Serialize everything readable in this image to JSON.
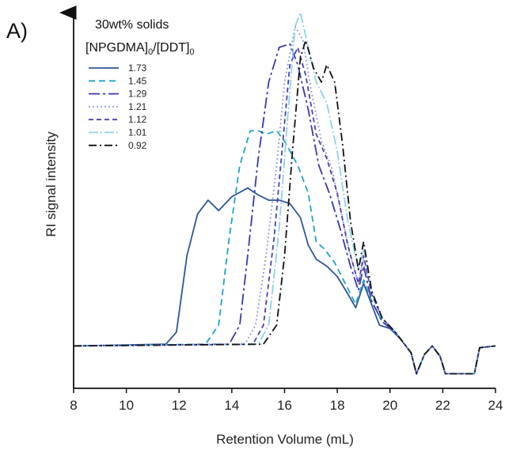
{
  "panel_label": "A)",
  "legend_title": {
    "line1": "30wt% solids",
    "main1": "[NPGDMA]",
    "sub1": "0",
    "main2": "/[DDT]",
    "sub2": "0"
  },
  "chart_data": {
    "type": "line",
    "xlabel": "Retention Volume (mL)",
    "ylabel": "RI signal intensity",
    "xlim": [
      8,
      24
    ],
    "ylim": [
      0,
      1.0
    ],
    "xticks": [
      8,
      10,
      12,
      14,
      16,
      18,
      20,
      22,
      24
    ],
    "y_tick_labels_shown": false,
    "grid": false,
    "legend_position": "top-left",
    "series": [
      {
        "name": "1.73",
        "color": "#2f5597",
        "dash": "",
        "points": [
          [
            8,
            0.04
          ],
          [
            11.5,
            0.045
          ],
          [
            11.9,
            0.08
          ],
          [
            12.3,
            0.3
          ],
          [
            12.7,
            0.42
          ],
          [
            13.1,
            0.46
          ],
          [
            13.5,
            0.43
          ],
          [
            14.0,
            0.47
          ],
          [
            14.6,
            0.495
          ],
          [
            15.0,
            0.475
          ],
          [
            15.4,
            0.46
          ],
          [
            15.8,
            0.46
          ],
          [
            16.2,
            0.45
          ],
          [
            16.6,
            0.41
          ],
          [
            16.9,
            0.33
          ],
          [
            17.2,
            0.29
          ],
          [
            17.6,
            0.27
          ],
          [
            18.0,
            0.24
          ],
          [
            18.4,
            0.19
          ],
          [
            18.7,
            0.15
          ],
          [
            19.0,
            0.22
          ],
          [
            19.3,
            0.16
          ],
          [
            19.6,
            0.1
          ],
          [
            20.0,
            0.09
          ],
          [
            20.4,
            0.06
          ],
          [
            20.8,
            0.02
          ],
          [
            21.0,
            -0.04
          ],
          [
            21.3,
            0.015
          ],
          [
            21.6,
            0.04
          ],
          [
            21.9,
            0.01
          ],
          [
            22.1,
            -0.04
          ],
          [
            23.2,
            -0.04
          ],
          [
            23.4,
            0.035
          ],
          [
            24,
            0.04
          ]
        ]
      },
      {
        "name": "1.45",
        "color": "#21a3c9",
        "dash": "8,5",
        "points": [
          [
            8,
            0.04
          ],
          [
            13.0,
            0.045
          ],
          [
            13.5,
            0.1
          ],
          [
            13.9,
            0.35
          ],
          [
            14.3,
            0.56
          ],
          [
            14.7,
            0.66
          ],
          [
            15.0,
            0.66
          ],
          [
            15.3,
            0.65
          ],
          [
            15.7,
            0.66
          ],
          [
            16.0,
            0.63
          ],
          [
            16.5,
            0.56
          ],
          [
            16.9,
            0.48
          ],
          [
            17.2,
            0.34
          ],
          [
            17.5,
            0.32
          ],
          [
            17.9,
            0.28
          ],
          [
            18.3,
            0.22
          ],
          [
            18.7,
            0.16
          ],
          [
            19.0,
            0.23
          ],
          [
            19.3,
            0.17
          ],
          [
            19.7,
            0.11
          ],
          [
            20.2,
            0.08
          ],
          [
            20.8,
            0.02
          ],
          [
            21.0,
            -0.04
          ],
          [
            21.3,
            0.015
          ],
          [
            21.6,
            0.04
          ],
          [
            21.9,
            0.01
          ],
          [
            22.1,
            -0.04
          ],
          [
            23.2,
            -0.04
          ],
          [
            23.4,
            0.035
          ],
          [
            24,
            0.04
          ]
        ]
      },
      {
        "name": "1.29",
        "color": "#3b39a8",
        "dash": "14,4,3,4",
        "points": [
          [
            8,
            0.04
          ],
          [
            13.9,
            0.045
          ],
          [
            14.3,
            0.1
          ],
          [
            14.6,
            0.3
          ],
          [
            15.0,
            0.58
          ],
          [
            15.4,
            0.8
          ],
          [
            15.8,
            0.9
          ],
          [
            16.2,
            0.91
          ],
          [
            16.5,
            0.85
          ],
          [
            16.9,
            0.72
          ],
          [
            17.3,
            0.56
          ],
          [
            17.7,
            0.48
          ],
          [
            18.1,
            0.38
          ],
          [
            18.5,
            0.27
          ],
          [
            18.8,
            0.2
          ],
          [
            19.0,
            0.27
          ],
          [
            19.3,
            0.17
          ],
          [
            19.7,
            0.11
          ],
          [
            20.2,
            0.08
          ],
          [
            20.8,
            0.02
          ],
          [
            21.0,
            -0.04
          ],
          [
            21.3,
            0.015
          ],
          [
            21.6,
            0.04
          ],
          [
            21.9,
            0.01
          ],
          [
            22.1,
            -0.04
          ],
          [
            23.2,
            -0.04
          ],
          [
            23.4,
            0.035
          ],
          [
            24,
            0.04
          ]
        ]
      },
      {
        "name": "1.21",
        "color": "#8c9ed8",
        "dash": "2,3",
        "points": [
          [
            8,
            0.04
          ],
          [
            14.5,
            0.045
          ],
          [
            14.9,
            0.1
          ],
          [
            15.3,
            0.3
          ],
          [
            15.7,
            0.56
          ],
          [
            16.0,
            0.8
          ],
          [
            16.4,
            0.96
          ],
          [
            16.7,
            0.92
          ],
          [
            17.0,
            0.78
          ],
          [
            17.4,
            0.63
          ],
          [
            17.8,
            0.55
          ],
          [
            18.1,
            0.44
          ],
          [
            18.5,
            0.3
          ],
          [
            18.8,
            0.22
          ],
          [
            19.0,
            0.29
          ],
          [
            19.3,
            0.19
          ],
          [
            19.7,
            0.12
          ],
          [
            20.2,
            0.08
          ],
          [
            20.8,
            0.02
          ],
          [
            21.0,
            -0.04
          ],
          [
            21.3,
            0.015
          ],
          [
            21.6,
            0.04
          ],
          [
            21.9,
            0.01
          ],
          [
            22.1,
            -0.04
          ],
          [
            23.2,
            -0.04
          ],
          [
            23.4,
            0.035
          ],
          [
            24,
            0.04
          ]
        ]
      },
      {
        "name": "1.12",
        "color": "#4d3fb0",
        "dash": "6,4",
        "points": [
          [
            8,
            0.04
          ],
          [
            14.8,
            0.045
          ],
          [
            15.2,
            0.1
          ],
          [
            15.6,
            0.35
          ],
          [
            15.9,
            0.6
          ],
          [
            16.2,
            0.85
          ],
          [
            16.5,
            0.9
          ],
          [
            16.8,
            0.82
          ],
          [
            17.2,
            0.65
          ],
          [
            17.6,
            0.58
          ],
          [
            18.0,
            0.48
          ],
          [
            18.4,
            0.33
          ],
          [
            18.8,
            0.22
          ],
          [
            19.0,
            0.3
          ],
          [
            19.3,
            0.19
          ],
          [
            19.7,
            0.12
          ],
          [
            20.2,
            0.08
          ],
          [
            20.8,
            0.02
          ],
          [
            21.0,
            -0.04
          ],
          [
            21.3,
            0.015
          ],
          [
            21.6,
            0.04
          ],
          [
            21.9,
            0.01
          ],
          [
            22.1,
            -0.04
          ],
          [
            23.2,
            -0.04
          ],
          [
            23.4,
            0.035
          ],
          [
            24,
            0.04
          ]
        ]
      },
      {
        "name": "1.01",
        "color": "#8ed3ea",
        "dash": "12,3,2,3",
        "points": [
          [
            8,
            0.04
          ],
          [
            15.0,
            0.045
          ],
          [
            15.4,
            0.1
          ],
          [
            15.8,
            0.38
          ],
          [
            16.1,
            0.68
          ],
          [
            16.4,
            0.96
          ],
          [
            16.6,
            1.0
          ],
          [
            16.9,
            0.9
          ],
          [
            17.2,
            0.8
          ],
          [
            17.6,
            0.74
          ],
          [
            18.0,
            0.6
          ],
          [
            18.4,
            0.4
          ],
          [
            18.8,
            0.26
          ],
          [
            19.0,
            0.32
          ],
          [
            19.3,
            0.2
          ],
          [
            19.7,
            0.12
          ],
          [
            20.2,
            0.08
          ],
          [
            20.8,
            0.02
          ],
          [
            21.0,
            -0.04
          ],
          [
            21.3,
            0.015
          ],
          [
            21.6,
            0.04
          ],
          [
            21.9,
            0.01
          ],
          [
            22.1,
            -0.04
          ],
          [
            23.2,
            -0.04
          ],
          [
            23.4,
            0.035
          ],
          [
            24,
            0.04
          ]
        ]
      },
      {
        "name": "0.92",
        "color": "#111111",
        "dash": "10,4,2,4",
        "points": [
          [
            8,
            0.04
          ],
          [
            15.2,
            0.045
          ],
          [
            15.7,
            0.1
          ],
          [
            16.0,
            0.3
          ],
          [
            16.3,
            0.6
          ],
          [
            16.6,
            0.87
          ],
          [
            16.8,
            0.92
          ],
          [
            17.1,
            0.84
          ],
          [
            17.4,
            0.8
          ],
          [
            17.6,
            0.85
          ],
          [
            17.9,
            0.8
          ],
          [
            18.2,
            0.62
          ],
          [
            18.5,
            0.4
          ],
          [
            18.8,
            0.26
          ],
          [
            19.0,
            0.34
          ],
          [
            19.3,
            0.2
          ],
          [
            19.7,
            0.12
          ],
          [
            20.2,
            0.08
          ],
          [
            20.8,
            0.02
          ],
          [
            21.0,
            -0.04
          ],
          [
            21.3,
            0.015
          ],
          [
            21.6,
            0.04
          ],
          [
            21.9,
            0.01
          ],
          [
            22.1,
            -0.04
          ],
          [
            23.2,
            -0.04
          ],
          [
            23.4,
            0.035
          ],
          [
            24,
            0.04
          ]
        ]
      }
    ]
  }
}
